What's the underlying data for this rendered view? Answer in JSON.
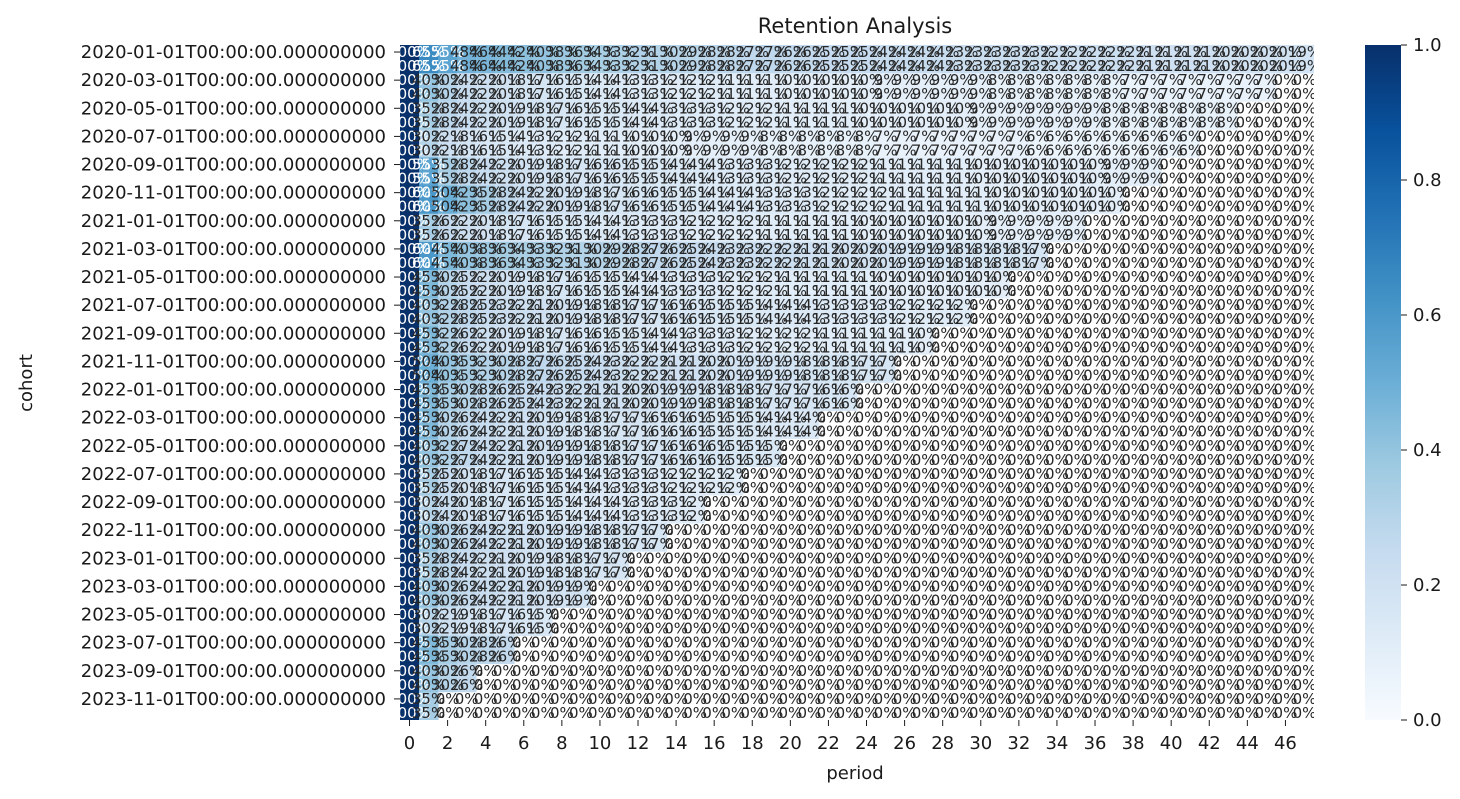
{
  "chart_data": {
    "type": "heatmap",
    "title": "Retention Analysis",
    "xlabel": "period",
    "ylabel": "cohort",
    "x_tick_labels": [
      "0",
      "2",
      "4",
      "6",
      "8",
      "10",
      "12",
      "14",
      "16",
      "18",
      "20",
      "22",
      "24",
      "26",
      "28",
      "30",
      "32",
      "34",
      "36",
      "38",
      "40",
      "42",
      "44",
      "46"
    ],
    "y_tick_labels": [
      "2020-01-01T00:00:00.000000000",
      "2020-03-01T00:00:00.000000000",
      "2020-05-01T00:00:00.000000000",
      "2020-07-01T00:00:00.000000000",
      "2020-09-01T00:00:00.000000000",
      "2020-11-01T00:00:00.000000000",
      "2021-01-01T00:00:00.000000000",
      "2021-03-01T00:00:00.000000000",
      "2021-05-01T00:00:00.000000000",
      "2021-07-01T00:00:00.000000000",
      "2021-09-01T00:00:00.000000000",
      "2021-11-01T00:00:00.000000000",
      "2022-01-01T00:00:00.000000000",
      "2022-03-01T00:00:00.000000000",
      "2022-05-01T00:00:00.000000000",
      "2022-07-01T00:00:00.000000000",
      "2022-09-01T00:00:00.000000000",
      "2022-11-01T00:00:00.000000000",
      "2023-01-01T00:00:00.000000000",
      "2023-03-01T00:00:00.000000000",
      "2023-05-01T00:00:00.000000000",
      "2023-07-01T00:00:00.000000000",
      "2023-09-01T00:00:00.000000000",
      "2023-11-01T00:00:00.000000000"
    ],
    "cohorts_count": 48,
    "periods_count": 48,
    "colorbar": {
      "colormap": "Blues",
      "range": [
        0.0,
        1.0
      ],
      "tick_labels": [
        "0.0",
        "0.2",
        "0.4",
        "0.6",
        "0.8",
        "1.0"
      ]
    },
    "cell_label_format": "percent",
    "colors": {
      "low": "#f7fbff",
      "high": "#08306b"
    },
    "cohort_retention": [
      [
        1.0,
        0.65,
        0.55,
        0.48,
        0.46,
        0.44,
        0.42,
        0.4,
        0.38,
        0.36,
        0.34,
        0.33,
        0.32,
        0.31,
        0.3,
        0.29,
        0.28,
        0.28,
        0.27,
        0.27,
        0.26,
        0.26,
        0.25,
        0.25,
        0.25,
        0.24,
        0.24,
        0.24,
        0.24,
        0.23,
        0.23,
        0.23,
        0.23,
        0.23,
        0.22,
        0.22,
        0.22,
        0.22,
        0.22,
        0.21,
        0.21,
        0.21,
        0.21,
        0.2,
        0.2,
        0.2,
        0.2,
        0.19
      ],
      [
        1.0,
        0.4,
        0.3,
        0.24,
        0.22,
        0.2,
        0.18,
        0.17,
        0.16,
        0.15,
        0.14,
        0.14,
        0.13,
        0.13,
        0.12,
        0.12,
        0.12,
        0.11,
        0.11,
        0.11,
        0.1,
        0.1,
        0.1,
        0.1,
        0.1,
        0.09,
        0.09,
        0.09,
        0.09,
        0.09,
        0.09,
        0.08,
        0.08,
        0.08,
        0.08,
        0.08,
        0.08,
        0.08,
        0.07,
        0.07,
        0.07,
        0.07,
        0.07,
        0.07,
        0.07,
        0.07
      ],
      [
        1.0,
        0.35,
        0.28,
        0.24,
        0.22,
        0.2,
        0.19,
        0.18,
        0.17,
        0.16,
        0.15,
        0.15,
        0.14,
        0.14,
        0.13,
        0.13,
        0.13,
        0.12,
        0.12,
        0.12,
        0.11,
        0.11,
        0.11,
        0.11,
        0.1,
        0.1,
        0.1,
        0.1,
        0.1,
        0.1,
        0.09,
        0.09,
        0.09,
        0.09,
        0.09,
        0.09,
        0.09,
        0.08,
        0.08,
        0.08,
        0.08,
        0.08,
        0.08,
        0.08
      ],
      [
        1.0,
        0.3,
        0.22,
        0.18,
        0.16,
        0.15,
        0.14,
        0.13,
        0.12,
        0.12,
        0.11,
        0.11,
        0.1,
        0.1,
        0.1,
        0.09,
        0.09,
        0.09,
        0.09,
        0.08,
        0.08,
        0.08,
        0.08,
        0.08,
        0.08,
        0.07,
        0.07,
        0.07,
        0.07,
        0.07,
        0.07,
        0.07,
        0.07,
        0.06,
        0.06,
        0.06,
        0.06,
        0.06,
        0.06,
        0.06,
        0.06,
        0.06
      ],
      [
        1.0,
        0.55,
        0.35,
        0.28,
        0.24,
        0.22,
        0.2,
        0.19,
        0.18,
        0.17,
        0.16,
        0.16,
        0.15,
        0.15,
        0.14,
        0.14,
        0.14,
        0.13,
        0.13,
        0.13,
        0.12,
        0.12,
        0.12,
        0.12,
        0.12,
        0.11,
        0.11,
        0.11,
        0.11,
        0.11,
        0.1,
        0.1,
        0.1,
        0.1,
        0.1,
        0.1,
        0.1,
        0.09,
        0.09,
        0.09
      ],
      [
        1.0,
        0.6,
        0.5,
        0.42,
        0.35,
        0.28,
        0.24,
        0.22,
        0.2,
        0.19,
        0.18,
        0.17,
        0.16,
        0.16,
        0.15,
        0.15,
        0.14,
        0.14,
        0.14,
        0.13,
        0.13,
        0.13,
        0.12,
        0.12,
        0.12,
        0.12,
        0.11,
        0.11,
        0.11,
        0.11,
        0.11,
        0.1,
        0.1,
        0.1,
        0.1,
        0.1,
        0.1,
        0.1
      ],
      [
        1.0,
        0.35,
        0.26,
        0.22,
        0.2,
        0.18,
        0.17,
        0.16,
        0.15,
        0.15,
        0.14,
        0.14,
        0.13,
        0.13,
        0.13,
        0.12,
        0.12,
        0.12,
        0.12,
        0.11,
        0.11,
        0.11,
        0.11,
        0.11,
        0.1,
        0.1,
        0.1,
        0.1,
        0.1,
        0.1,
        0.1,
        0.09,
        0.09,
        0.09,
        0.09,
        0.09
      ],
      [
        1.0,
        0.6,
        0.45,
        0.4,
        0.38,
        0.36,
        0.34,
        0.33,
        0.32,
        0.31,
        0.3,
        0.29,
        0.28,
        0.27,
        0.26,
        0.25,
        0.24,
        0.23,
        0.23,
        0.22,
        0.22,
        0.21,
        0.21,
        0.2,
        0.2,
        0.2,
        0.19,
        0.19,
        0.19,
        0.18,
        0.18,
        0.18,
        0.18,
        0.17
      ],
      [
        1.0,
        0.45,
        0.3,
        0.25,
        0.22,
        0.2,
        0.19,
        0.18,
        0.17,
        0.16,
        0.15,
        0.15,
        0.14,
        0.14,
        0.13,
        0.13,
        0.13,
        0.12,
        0.12,
        0.12,
        0.11,
        0.11,
        0.11,
        0.11,
        0.11,
        0.1,
        0.1,
        0.1,
        0.1,
        0.1,
        0.1,
        0.1
      ],
      [
        1.0,
        0.4,
        0.32,
        0.28,
        0.25,
        0.23,
        0.22,
        0.21,
        0.2,
        0.19,
        0.18,
        0.18,
        0.17,
        0.17,
        0.16,
        0.16,
        0.15,
        0.15,
        0.15,
        0.14,
        0.14,
        0.14,
        0.13,
        0.13,
        0.13,
        0.13,
        0.12,
        0.12,
        0.12,
        0.12
      ],
      [
        1.0,
        0.45,
        0.32,
        0.26,
        0.22,
        0.2,
        0.19,
        0.18,
        0.17,
        0.16,
        0.16,
        0.15,
        0.15,
        0.14,
        0.14,
        0.13,
        0.13,
        0.13,
        0.12,
        0.12,
        0.12,
        0.12,
        0.11,
        0.11,
        0.11,
        0.11,
        0.11,
        0.1
      ],
      [
        1.0,
        0.5,
        0.4,
        0.35,
        0.32,
        0.3,
        0.28,
        0.27,
        0.26,
        0.25,
        0.24,
        0.23,
        0.22,
        0.22,
        0.21,
        0.21,
        0.2,
        0.2,
        0.19,
        0.19,
        0.19,
        0.18,
        0.18,
        0.18,
        0.17,
        0.17
      ],
      [
        1.0,
        0.45,
        0.35,
        0.3,
        0.28,
        0.26,
        0.25,
        0.24,
        0.23,
        0.22,
        0.21,
        0.21,
        0.2,
        0.2,
        0.19,
        0.19,
        0.18,
        0.18,
        0.18,
        0.17,
        0.17,
        0.17,
        0.16,
        0.16
      ],
      [
        1.0,
        0.45,
        0.3,
        0.26,
        0.24,
        0.22,
        0.21,
        0.2,
        0.19,
        0.18,
        0.18,
        0.17,
        0.17,
        0.16,
        0.16,
        0.16,
        0.15,
        0.15,
        0.15,
        0.14,
        0.14,
        0.14
      ],
      [
        1.0,
        0.4,
        0.32,
        0.27,
        0.24,
        0.22,
        0.21,
        0.2,
        0.19,
        0.19,
        0.18,
        0.18,
        0.17,
        0.17,
        0.16,
        0.16,
        0.16,
        0.15,
        0.15,
        0.15
      ],
      [
        1.0,
        0.35,
        0.25,
        0.2,
        0.18,
        0.17,
        0.16,
        0.15,
        0.15,
        0.14,
        0.14,
        0.13,
        0.13,
        0.13,
        0.12,
        0.12,
        0.12,
        0.12
      ],
      [
        1.0,
        0.3,
        0.24,
        0.2,
        0.18,
        0.17,
        0.16,
        0.15,
        0.15,
        0.14,
        0.14,
        0.14,
        0.13,
        0.13,
        0.13,
        0.12
      ],
      [
        1.0,
        0.4,
        0.3,
        0.26,
        0.24,
        0.22,
        0.21,
        0.2,
        0.19,
        0.19,
        0.18,
        0.18,
        0.17,
        0.17
      ],
      [
        1.0,
        0.35,
        0.28,
        0.24,
        0.22,
        0.21,
        0.2,
        0.19,
        0.18,
        0.18,
        0.17,
        0.17
      ],
      [
        1.0,
        0.4,
        0.3,
        0.26,
        0.24,
        0.22,
        0.21,
        0.2,
        0.19,
        0.19
      ],
      [
        1.0,
        0.3,
        0.22,
        0.19,
        0.18,
        0.17,
        0.16,
        0.15
      ],
      [
        1.0,
        0.45,
        0.35,
        0.3,
        0.28,
        0.26
      ],
      [
        1.0,
        0.4,
        0.3,
        0.26
      ],
      [
        1.0,
        0.35
      ]
    ]
  }
}
